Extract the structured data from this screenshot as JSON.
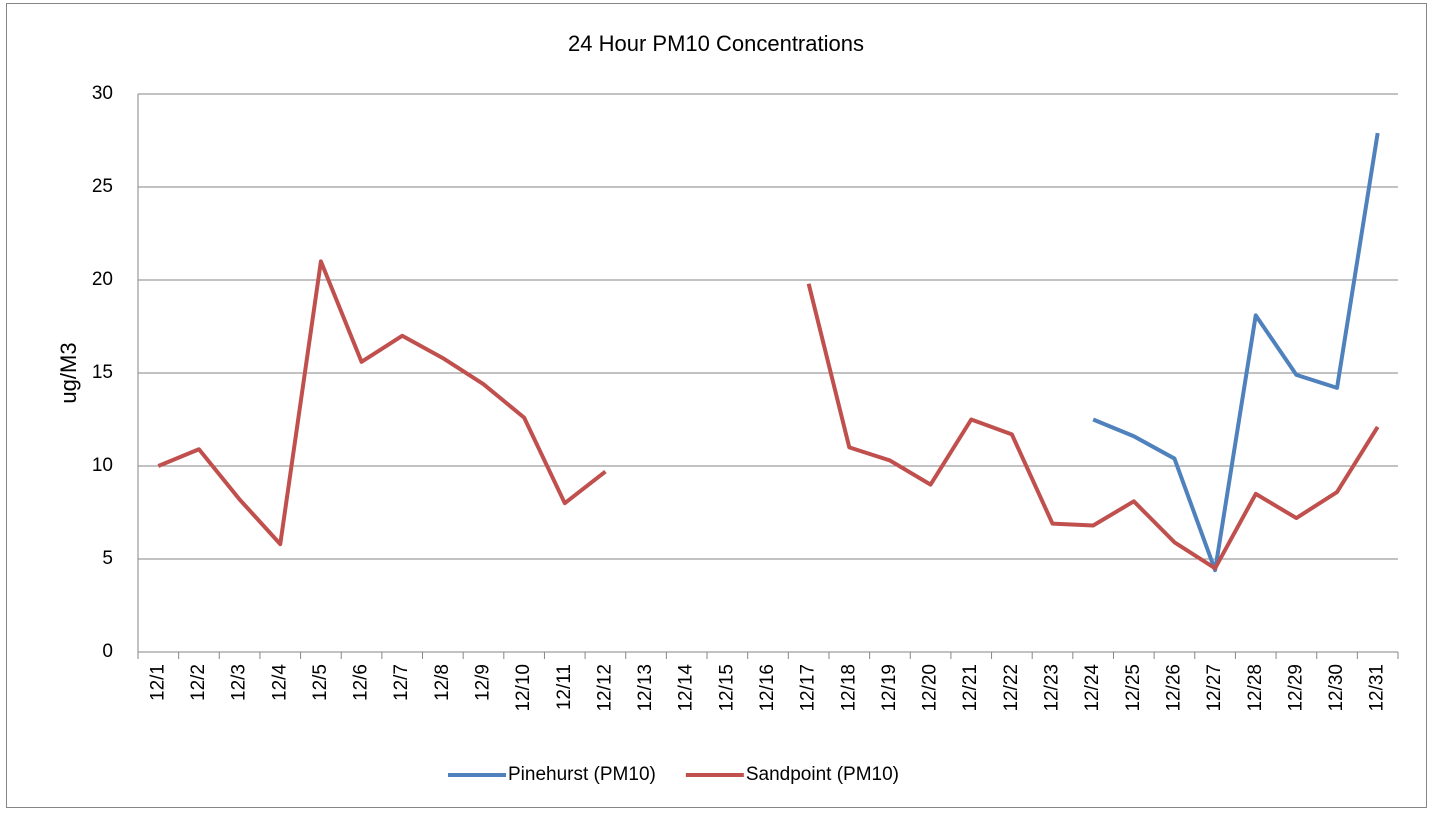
{
  "chart_data": {
    "type": "line",
    "title": "24 Hour PM10 Concentrations",
    "y_label": "ug/M3",
    "categories": [
      "12/1",
      "12/2",
      "12/3",
      "12/4",
      "12/5",
      "12/6",
      "12/7",
      "12/8",
      "12/9",
      "12/10",
      "12/11",
      "12/12",
      "12/13",
      "12/14",
      "12/15",
      "12/16",
      "12/17",
      "12/18",
      "12/19",
      "12/20",
      "12/21",
      "12/22",
      "12/23",
      "12/24",
      "12/25",
      "12/26",
      "12/27",
      "12/28",
      "12/29",
      "12/30",
      "12/31"
    ],
    "series": [
      {
        "name": "Pinehurst (PM10)",
        "color": "#4f81bd",
        "values": [
          null,
          null,
          null,
          null,
          null,
          null,
          null,
          null,
          null,
          null,
          null,
          null,
          null,
          null,
          null,
          null,
          null,
          null,
          null,
          null,
          null,
          null,
          null,
          12.5,
          11.6,
          10.4,
          4.4,
          18.1,
          14.9,
          14.2,
          27.9
        ]
      },
      {
        "name": "Sandpoint (PM10)",
        "color": "#c0504d",
        "values": [
          10.0,
          10.9,
          8.2,
          5.8,
          21.0,
          15.6,
          17.0,
          15.8,
          14.4,
          12.6,
          8.0,
          9.7,
          null,
          null,
          null,
          null,
          19.8,
          11.0,
          10.3,
          9.0,
          12.5,
          11.7,
          6.9,
          6.8,
          8.1,
          5.9,
          4.5,
          8.5,
          7.2,
          8.6,
          12.1
        ]
      }
    ],
    "ylim": [
      0,
      30
    ],
    "yticks": [
      0,
      5,
      10,
      15,
      20,
      25,
      30
    ],
    "grid": true,
    "legend": "bottom"
  }
}
